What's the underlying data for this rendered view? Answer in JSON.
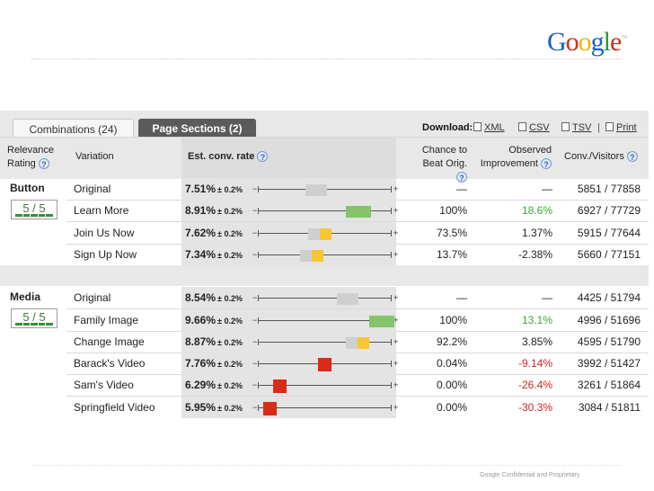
{
  "branding": {
    "logo_letters": [
      {
        "ch": "G",
        "color": "#1a5fd1"
      },
      {
        "ch": "o",
        "color": "#d8291f"
      },
      {
        "ch": "o",
        "color": "#f0b30a"
      },
      {
        "ch": "g",
        "color": "#1a5fd1"
      },
      {
        "ch": "l",
        "color": "#2f9b35"
      },
      {
        "ch": "e",
        "color": "#d8291f"
      }
    ],
    "footer": "Google Confidential and Proprietary"
  },
  "tabs": {
    "combinations": "Combinations (24)",
    "page_sections": "Page Sections (2)"
  },
  "download": {
    "label": "Download:",
    "xml": "XML",
    "csv": "CSV",
    "tsv": "TSV",
    "sep": "|",
    "print": "Print"
  },
  "headers": {
    "relevance": "Relevance",
    "rating": "Rating",
    "variation": "Variation",
    "est": "Est. conv. rate",
    "chance1": "Chance to",
    "chance2": "Beat Orig.",
    "obs1": "Observed",
    "obs2": "Improvement",
    "conv": "Conv./Visitors",
    "help": "?"
  },
  "colors": {
    "gray": "#cfcfcf",
    "yellow": "#f7c630",
    "green": "#84c46a",
    "red": "#d92b15",
    "pos_text": "#3aa53a",
    "neg_text": "#d42222"
  },
  "sections": [
    {
      "name": "Button",
      "rating": "5 / 5",
      "rows": [
        {
          "variation": "Original",
          "rate": "7.51%",
          "pm": "± 0.2%",
          "chance": "—",
          "obs": "—",
          "obs_sign": "none",
          "conv": "5851 / 77858",
          "marker": {
            "rate": 7.51,
            "color": "gray"
          }
        },
        {
          "variation": "Learn More",
          "rate": "8.91%",
          "pm": "± 0.2%",
          "chance": "100%",
          "obs": "18.6%",
          "obs_sign": "pos",
          "conv": "6927 / 77729",
          "marker": {
            "rate": 8.91,
            "color": "green"
          }
        },
        {
          "variation": "Join Us Now",
          "rate": "7.62%",
          "pm": "± 0.2%",
          "chance": "73.5%",
          "obs": "1.37%",
          "obs_sign": "none",
          "conv": "5915 / 77644",
          "marker": {
            "rate": 7.62,
            "color": "yellow"
          }
        },
        {
          "variation": "Sign Up Now",
          "rate": "7.34%",
          "pm": "± 0.2%",
          "chance": "13.7%",
          "obs": "-2.38%",
          "obs_sign": "none",
          "conv": "5660 / 77151",
          "marker": {
            "rate": 7.34,
            "color": "yellow"
          }
        }
      ]
    },
    {
      "name": "Media",
      "rating": "5 / 5",
      "rows": [
        {
          "variation": "Original",
          "rate": "8.54%",
          "pm": "± 0.2%",
          "chance": "—",
          "obs": "—",
          "obs_sign": "none",
          "conv": "4425 / 51794",
          "marker": {
            "rate": 8.54,
            "color": "gray"
          }
        },
        {
          "variation": "Family Image",
          "rate": "9.66%",
          "pm": "± 0.2%",
          "chance": "100%",
          "obs": "13.1%",
          "obs_sign": "pos",
          "conv": "4996 / 51696",
          "marker": {
            "rate": 9.66,
            "color": "green"
          }
        },
        {
          "variation": "Change Image",
          "rate": "8.87%",
          "pm": "± 0.2%",
          "chance": "92.2%",
          "obs": "3.85%",
          "obs_sign": "none",
          "conv": "4595 / 51790",
          "marker": {
            "rate": 8.87,
            "color": "yellow"
          }
        },
        {
          "variation": "Barack's Video",
          "rate": "7.76%",
          "pm": "± 0.2%",
          "chance": "0.04%",
          "obs": "-9.14%",
          "obs_sign": "neg",
          "conv": "3992 / 51427",
          "marker": {
            "rate": 7.76,
            "color": "red"
          }
        },
        {
          "variation": "Sam's Video",
          "rate": "6.29%",
          "pm": "± 0.2%",
          "chance": "0.00%",
          "obs": "-26.4%",
          "obs_sign": "neg",
          "conv": "3261 / 51864",
          "marker": {
            "rate": 6.29,
            "color": "red"
          }
        },
        {
          "variation": "Springfield Video",
          "rate": "5.95%",
          "pm": "± 0.2%",
          "chance": "0.00%",
          "obs": "-30.3%",
          "obs_sign": "neg",
          "conv": "3084 / 51811",
          "marker": {
            "rate": 5.95,
            "color": "red"
          }
        }
      ]
    }
  ],
  "plus": "+",
  "minus": "−"
}
